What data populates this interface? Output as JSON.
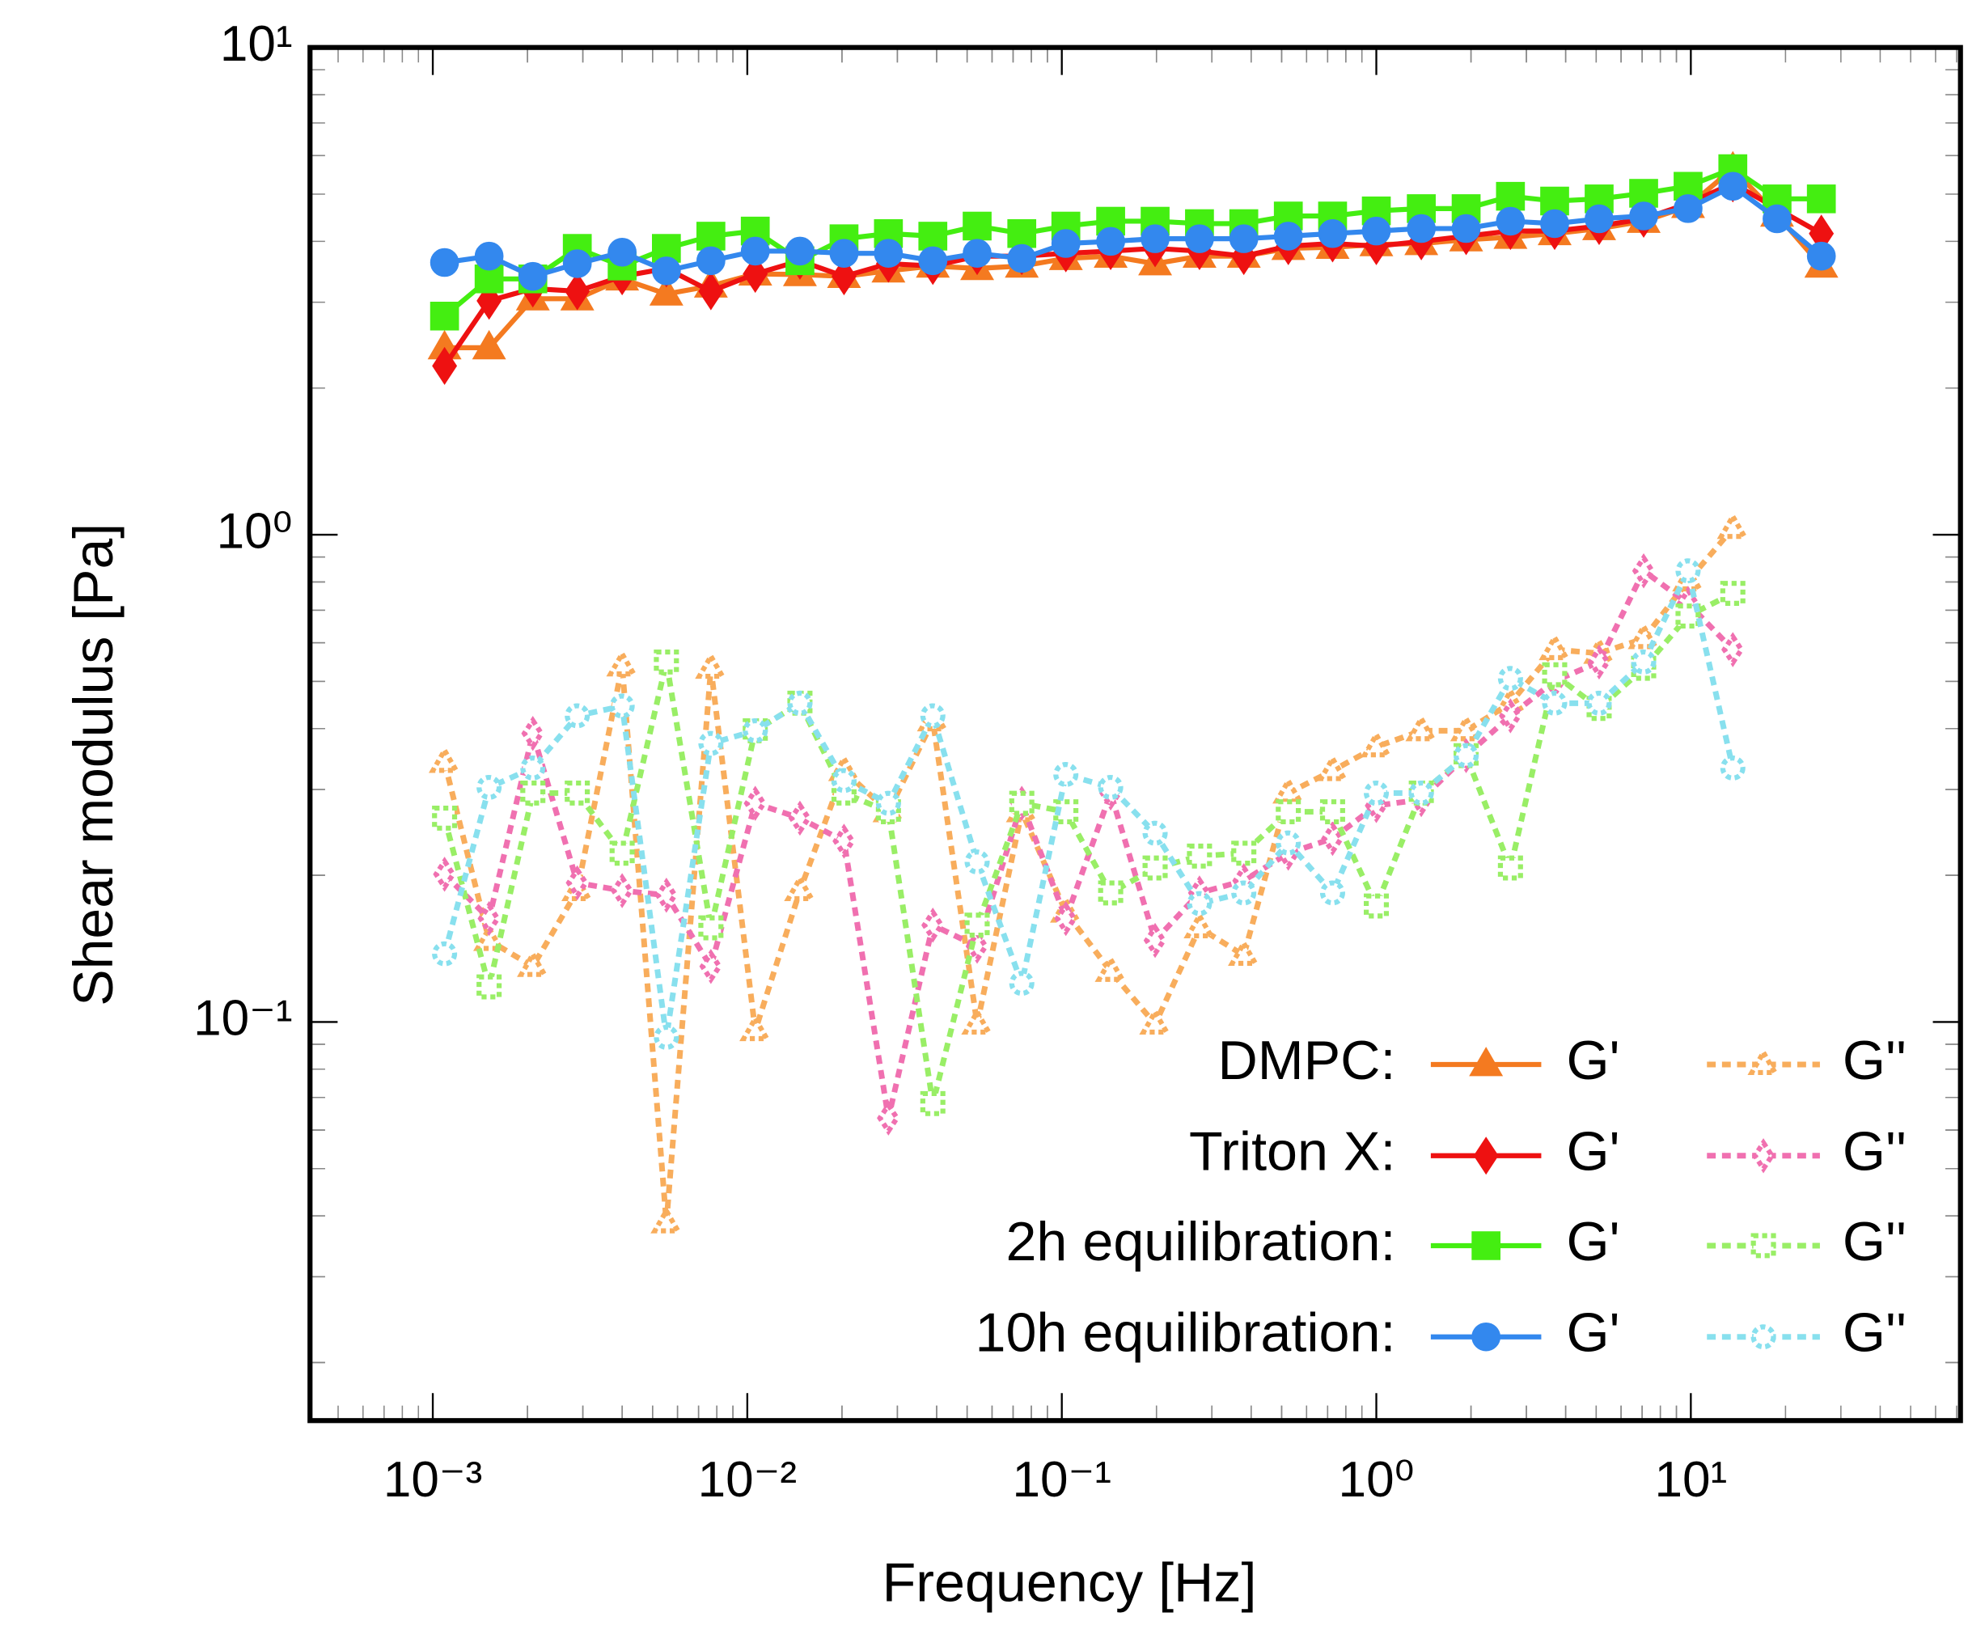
{
  "chart_data": {
    "type": "line",
    "x_label": "Frequency [Hz]",
    "y_label": "Shear modulus [Pa]",
    "x_log": true,
    "y_log": true,
    "minor_ticks": true,
    "legend": "lower right",
    "xlim": [
      0.000407,
      72
    ],
    "ylim": [
      0.0152,
      10
    ],
    "xticks": [
      {
        "value": 0.001,
        "label": "10⁻³"
      },
      {
        "value": 0.01,
        "label": "10⁻²"
      },
      {
        "value": 0.1,
        "label": "10⁻¹"
      },
      {
        "value": 1,
        "label": "10⁰"
      },
      {
        "value": 10,
        "label": "10¹"
      }
    ],
    "yticks": [
      {
        "value": 0.1,
        "label": "10⁻¹"
      },
      {
        "value": 1,
        "label": "10⁰"
      },
      {
        "value": 10,
        "label": "10¹"
      }
    ],
    "x": [
      0.00109,
      0.00151,
      0.00208,
      0.00288,
      0.004,
      0.00553,
      0.00766,
      0.0106,
      0.0147,
      0.0203,
      0.0281,
      0.0389,
      0.0538,
      0.0746,
      0.103,
      0.143,
      0.198,
      0.274,
      0.379,
      0.525,
      0.726,
      1.0,
      1.39,
      1.93,
      2.67,
      3.69,
      5.11,
      7.08,
      9.8,
      13.6,
      18.8,
      26.0
    ],
    "groups": [
      {
        "label": "DMPC:",
        "series": [
          {
            "name": "G'",
            "color": "#f47a20",
            "marker": "triangle",
            "style": "solid",
            "values": [
              2.42,
              2.42,
              3.05,
              3.05,
              3.35,
              3.12,
              3.24,
              3.43,
              3.42,
              3.39,
              3.48,
              3.56,
              3.52,
              3.56,
              3.69,
              3.73,
              3.6,
              3.73,
              3.73,
              3.87,
              3.89,
              3.94,
              3.96,
              4.03,
              4.08,
              4.15,
              4.25,
              4.4,
              4.72,
              5.64,
              4.53,
              3.56
            ]
          },
          {
            "name": "G''",
            "color": "#f8ad5c",
            "marker": "triangle",
            "style": "dotted",
            "values": [
              0.341,
              0.147,
              0.13,
              0.186,
              0.538,
              0.0387,
              0.532,
              0.096,
              0.186,
              0.328,
              0.27,
              0.415,
              0.099,
              0.27,
              0.168,
              0.127,
              0.099,
              0.156,
              0.137,
              0.295,
              0.328,
              0.367,
              0.396,
              0.396,
              0.451,
              0.581,
              0.571,
              0.612,
              0.804,
              1.03,
              null,
              null
            ]
          }
        ]
      },
      {
        "label": "Triton X:",
        "series": [
          {
            "name": "G'",
            "color": "#ee1111",
            "marker": "diamond",
            "style": "solid",
            "values": [
              2.22,
              3.02,
              3.2,
              3.16,
              3.39,
              3.52,
              3.16,
              3.43,
              3.65,
              3.39,
              3.6,
              3.56,
              3.73,
              3.73,
              3.78,
              3.82,
              3.87,
              3.82,
              3.73,
              3.91,
              3.96,
              3.91,
              4.0,
              4.1,
              4.2,
              4.2,
              4.3,
              4.45,
              4.78,
              5.26,
              4.67,
              4.15
            ]
          },
          {
            "name": "G''",
            "color": "#f070b0",
            "marker": "diamond",
            "style": "dotted",
            "values": [
              0.201,
              0.163,
              0.391,
              0.193,
              0.186,
              0.182,
              0.13,
              0.281,
              0.262,
              0.235,
              0.0635,
              0.158,
              0.143,
              0.281,
              0.163,
              0.295,
              0.147,
              0.184,
              0.195,
              0.222,
              0.238,
              0.278,
              0.286,
              0.352,
              0.425,
              0.501,
              0.548,
              0.843,
              0.723,
              0.581,
              null,
              null
            ]
          }
        ]
      },
      {
        "label": "2h equilibration:",
        "series": [
          {
            "name": "G'",
            "color": "#44ee11",
            "marker": "square",
            "style": "solid",
            "values": [
              2.81,
              3.35,
              3.35,
              3.87,
              3.56,
              3.87,
              4.1,
              4.2,
              3.65,
              4.05,
              4.15,
              4.1,
              4.3,
              4.15,
              4.3,
              4.4,
              4.4,
              4.35,
              4.35,
              4.51,
              4.51,
              4.62,
              4.67,
              4.67,
              4.95,
              4.84,
              4.89,
              5.02,
              5.19,
              5.64,
              4.89,
              4.89
            ]
          },
          {
            "name": "G''",
            "color": "#99ee66",
            "marker": "square",
            "style": "dotted",
            "values": [
              0.262,
              0.118,
              0.295,
              0.295,
              0.222,
              0.548,
              0.156,
              0.396,
              0.451,
              0.295,
              0.27,
              0.068,
              0.158,
              0.281,
              0.27,
              0.184,
              0.207,
              0.219,
              0.222,
              0.27,
              0.27,
              0.173,
              0.295,
              0.352,
              0.207,
              0.516,
              0.44,
              0.532,
              0.681,
              0.758,
              null,
              null
            ]
          }
        ]
      },
      {
        "label": "10h equilibration:",
        "series": [
          {
            "name": "G'",
            "color": "#3388ee",
            "marker": "circle",
            "style": "solid",
            "values": [
              3.62,
              3.73,
              3.39,
              3.6,
              3.8,
              3.48,
              3.65,
              3.82,
              3.82,
              3.78,
              3.78,
              3.65,
              3.78,
              3.69,
              3.96,
              4.0,
              4.05,
              4.05,
              4.05,
              4.1,
              4.15,
              4.2,
              4.25,
              4.25,
              4.4,
              4.35,
              4.45,
              4.51,
              4.67,
              5.19,
              4.45,
              3.73
            ]
          },
          {
            "name": "G''",
            "color": "#88e0ee",
            "marker": "circle",
            "style": "dotted",
            "values": [
              0.138,
              0.303,
              0.332,
              0.425,
              0.445,
              0.093,
              0.373,
              0.396,
              0.451,
              0.313,
              0.281,
              0.425,
              0.213,
              0.12,
              0.322,
              0.303,
              0.244,
              0.175,
              0.184,
              0.233,
              0.184,
              0.295,
              0.295,
              0.352,
              0.507,
              0.451,
              0.451,
              0.548,
              0.843,
              0.332,
              null,
              null
            ]
          }
        ]
      }
    ]
  }
}
